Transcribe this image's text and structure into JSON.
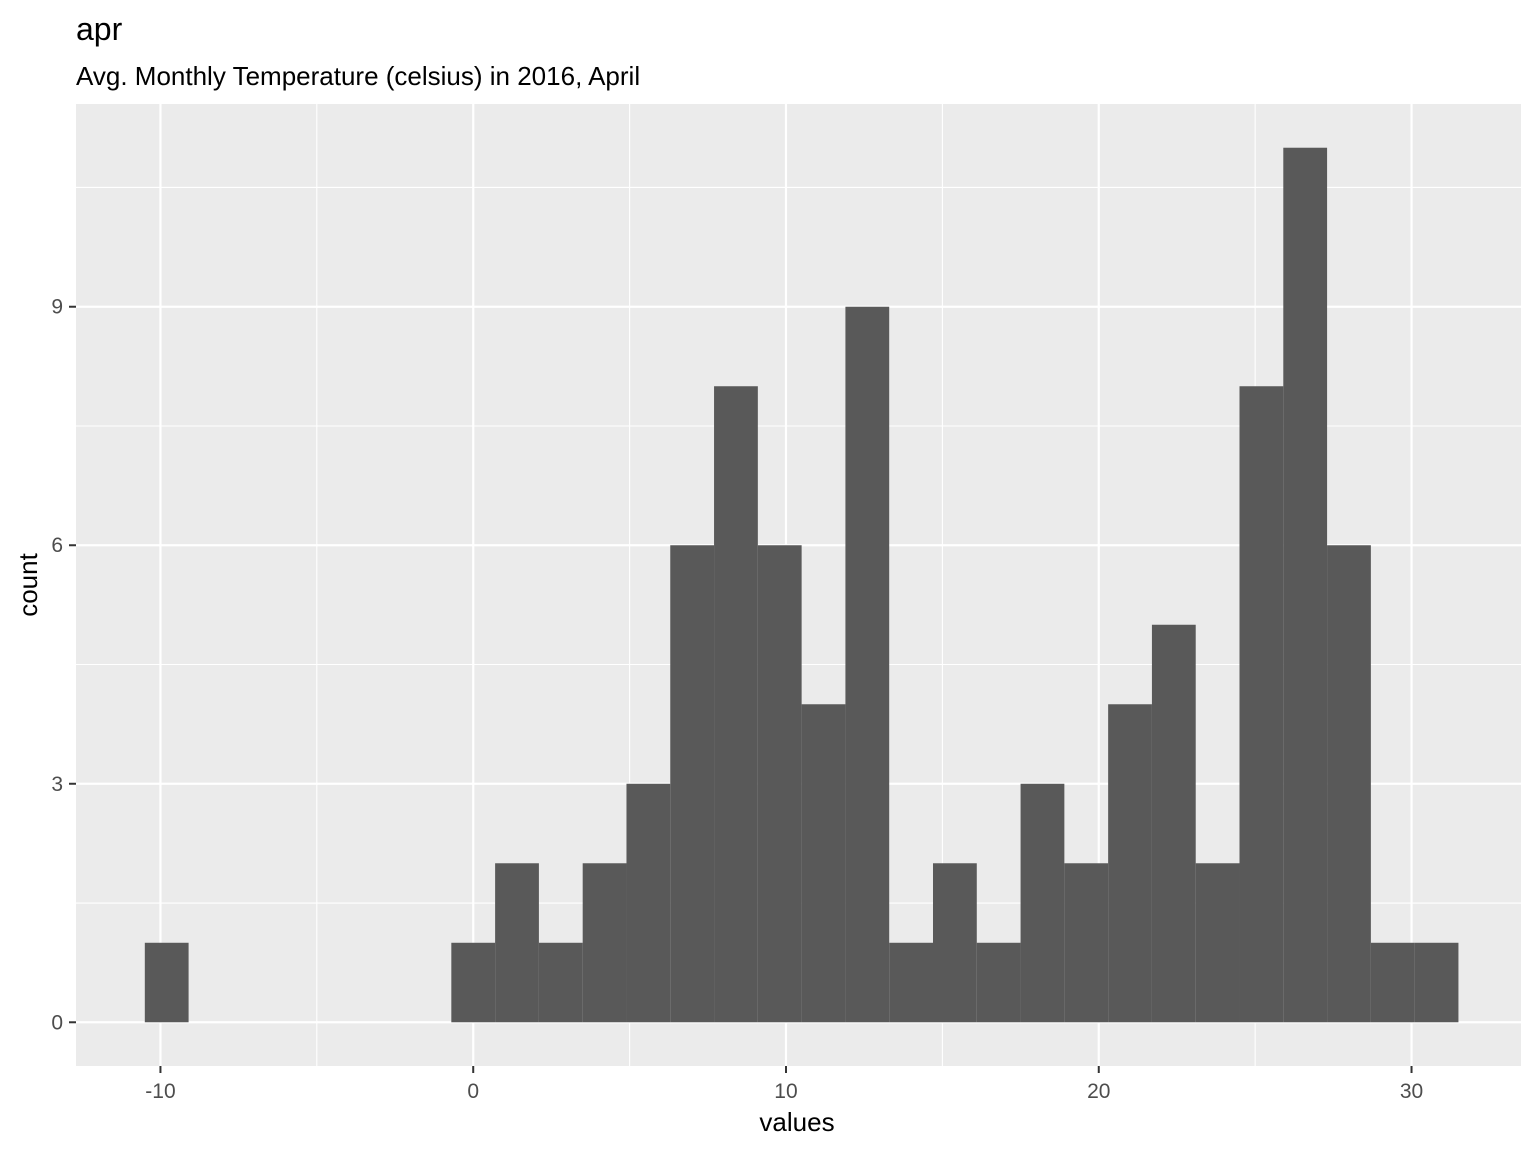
{
  "chart_data": {
    "type": "bar",
    "title": "apr",
    "subtitle": "Avg. Monthly Temperature (celsius) in 2016, April",
    "xlabel": "values",
    "ylabel": "count",
    "x_ticks": [
      -10,
      0,
      10,
      20,
      30
    ],
    "y_ticks": [
      0,
      3,
      6,
      9
    ],
    "xlim": [
      -12.7,
      33.5
    ],
    "ylim": [
      -0.55,
      11.55
    ],
    "bin_width": 1.4,
    "bins": [
      {
        "x": -9.8,
        "count": 1
      },
      {
        "x": 0.0,
        "count": 1
      },
      {
        "x": 1.4,
        "count": 2
      },
      {
        "x": 2.8,
        "count": 1
      },
      {
        "x": 4.2,
        "count": 2
      },
      {
        "x": 5.6,
        "count": 3
      },
      {
        "x": 7.0,
        "count": 6
      },
      {
        "x": 8.4,
        "count": 8
      },
      {
        "x": 9.8,
        "count": 6
      },
      {
        "x": 11.2,
        "count": 4
      },
      {
        "x": 12.6,
        "count": 9
      },
      {
        "x": 14.0,
        "count": 1
      },
      {
        "x": 15.4,
        "count": 2
      },
      {
        "x": 16.8,
        "count": 1
      },
      {
        "x": 18.2,
        "count": 3
      },
      {
        "x": 19.6,
        "count": 2
      },
      {
        "x": 21.0,
        "count": 4
      },
      {
        "x": 22.4,
        "count": 5
      },
      {
        "x": 23.8,
        "count": 2
      },
      {
        "x": 25.2,
        "count": 8
      },
      {
        "x": 26.6,
        "count": 11
      },
      {
        "x": 28.0,
        "count": 6
      },
      {
        "x": 29.4,
        "count": 1
      },
      {
        "x": 30.8,
        "count": 1
      }
    ],
    "colors": {
      "panel_background": "#ebebeb",
      "grid": "#ffffff",
      "bar_fill": "#595959",
      "tick_text": "#4d4d4d",
      "axis_tick": "#333333"
    },
    "grid": true,
    "legend": "none"
  }
}
